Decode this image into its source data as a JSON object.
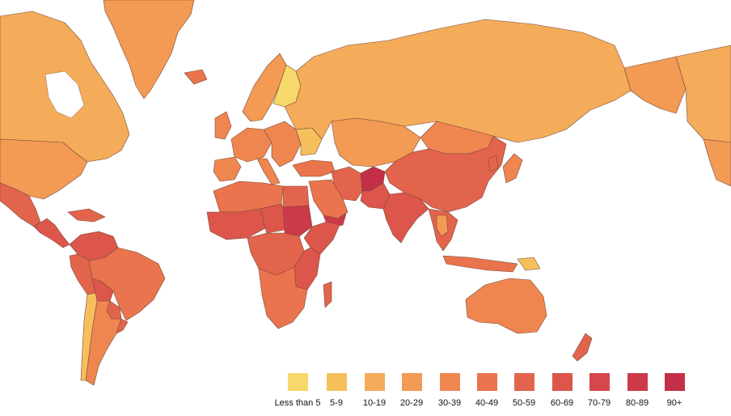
{
  "legend": {
    "bins": [
      {
        "label": "Less than 5",
        "color": "#f6d86b"
      },
      {
        "label": "5-9",
        "color": "#f5c05c"
      },
      {
        "label": "10-19",
        "color": "#f4ac5a"
      },
      {
        "label": "20-29",
        "color": "#f39a55"
      },
      {
        "label": "30-39",
        "color": "#ef8650"
      },
      {
        "label": "40-49",
        "color": "#ea744d"
      },
      {
        "label": "50-59",
        "color": "#e3644c"
      },
      {
        "label": "60-69",
        "color": "#dc564b"
      },
      {
        "label": "70-79",
        "color": "#d4474b"
      },
      {
        "label": "80-89",
        "color": "#cc3a4a"
      },
      {
        "label": "90+",
        "color": "#c42f48"
      }
    ]
  },
  "regions": [
    {
      "name": "greenland",
      "bin": "20-29"
    },
    {
      "name": "canada",
      "bin": "10-19"
    },
    {
      "name": "alaska",
      "bin": "20-29"
    },
    {
      "name": "united-states",
      "bin": "20-29"
    },
    {
      "name": "mexico",
      "bin": "50-59"
    },
    {
      "name": "central-america",
      "bin": "60-69"
    },
    {
      "name": "caribbean",
      "bin": "50-59"
    },
    {
      "name": "colombia-venezuela",
      "bin": "60-69"
    },
    {
      "name": "peru",
      "bin": "50-59"
    },
    {
      "name": "brazil",
      "bin": "40-49"
    },
    {
      "name": "bolivia",
      "bin": "60-69"
    },
    {
      "name": "paraguay",
      "bin": "50-59"
    },
    {
      "name": "chile",
      "bin": "5-9"
    },
    {
      "name": "argentina",
      "bin": "30-39"
    },
    {
      "name": "uruguay",
      "bin": "50-59"
    },
    {
      "name": "iceland",
      "bin": "40-49"
    },
    {
      "name": "scandinavia",
      "bin": "20-29"
    },
    {
      "name": "finland",
      "bin": "Less than 5"
    },
    {
      "name": "united-kingdom",
      "bin": "30-39"
    },
    {
      "name": "western-europe",
      "bin": "30-39"
    },
    {
      "name": "iberia",
      "bin": "30-39"
    },
    {
      "name": "italy",
      "bin": "30-39"
    },
    {
      "name": "eastern-europe",
      "bin": "30-39"
    },
    {
      "name": "ukraine",
      "bin": "5-9"
    },
    {
      "name": "russia",
      "bin": "10-19"
    },
    {
      "name": "turkey",
      "bin": "40-49"
    },
    {
      "name": "kazakhstan-central-asia",
      "bin": "20-29"
    },
    {
      "name": "mongolia",
      "bin": "30-39"
    },
    {
      "name": "china",
      "bin": "50-59"
    },
    {
      "name": "north-korea",
      "bin": "50-59"
    },
    {
      "name": "japan",
      "bin": "30-39"
    },
    {
      "name": "iran",
      "bin": "50-59"
    },
    {
      "name": "afghanistan",
      "bin": "90+"
    },
    {
      "name": "pakistan",
      "bin": "60-69"
    },
    {
      "name": "india",
      "bin": "60-69"
    },
    {
      "name": "arabia",
      "bin": "40-49"
    },
    {
      "name": "yemen",
      "bin": "80-89"
    },
    {
      "name": "north-africa",
      "bin": "40-49"
    },
    {
      "name": "west-africa",
      "bin": "60-69"
    },
    {
      "name": "chad-niger",
      "bin": "60-69"
    },
    {
      "name": "sudan",
      "bin": "80-89"
    },
    {
      "name": "egypt",
      "bin": "50-59"
    },
    {
      "name": "ethiopia-somalia",
      "bin": "60-69"
    },
    {
      "name": "central-africa",
      "bin": "50-59"
    },
    {
      "name": "east-africa",
      "bin": "60-69"
    },
    {
      "name": "southern-africa",
      "bin": "40-49"
    },
    {
      "name": "madagascar",
      "bin": "50-59"
    },
    {
      "name": "southeast-asia",
      "bin": "50-59"
    },
    {
      "name": "thailand",
      "bin": "20-29"
    },
    {
      "name": "indonesia",
      "bin": "40-49"
    },
    {
      "name": "papua-new-guinea",
      "bin": "5-9"
    },
    {
      "name": "australia",
      "bin": "30-39"
    },
    {
      "name": "new-zealand",
      "bin": "50-59"
    }
  ]
}
